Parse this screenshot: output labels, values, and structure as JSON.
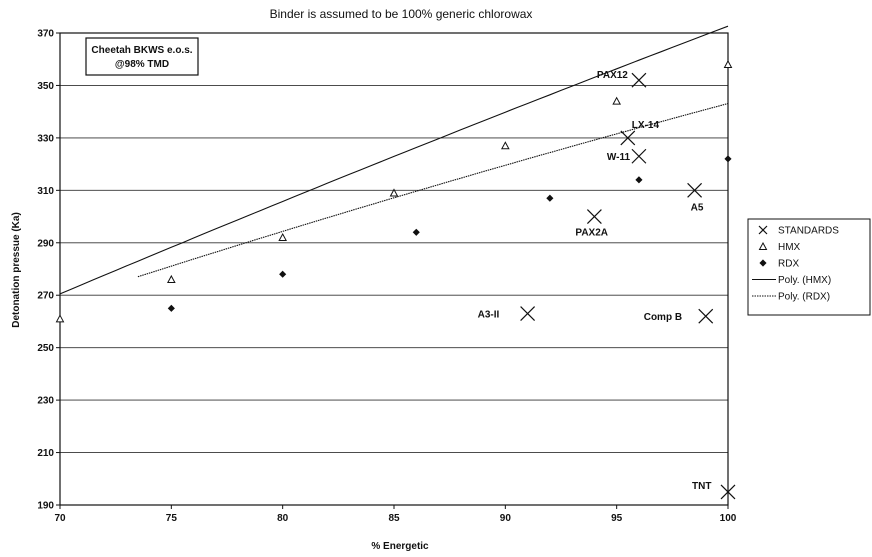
{
  "chart_data": {
    "type": "scatter",
    "title": "Binder is assumed to be 100% generic chlorowax",
    "xlabel": "% Energetic",
    "ylabel": "Detonation pressue (Ka)",
    "xlim": [
      70,
      100
    ],
    "ylim": [
      190,
      370
    ],
    "x_ticks": [
      "70",
      "75",
      "80",
      "85",
      "90",
      "95",
      "100"
    ],
    "y_ticks": [
      "190",
      "210",
      "230",
      "250",
      "270",
      "290",
      "310",
      "330",
      "350",
      "370"
    ],
    "grid": "horizontal",
    "legend_position": "right",
    "info_box": {
      "line1": "Cheetah BKWS e.o.s.",
      "line2": "@98% TMD"
    },
    "series": [
      {
        "name": "HMX",
        "marker": "triangle",
        "points": [
          {
            "x": 70,
            "y": 261
          },
          {
            "x": 75,
            "y": 276
          },
          {
            "x": 80,
            "y": 292
          },
          {
            "x": 85,
            "y": 309
          },
          {
            "x": 90,
            "y": 327
          },
          {
            "x": 95,
            "y": 344
          },
          {
            "x": 100,
            "y": 358
          }
        ]
      },
      {
        "name": "RDX",
        "marker": "diamond",
        "points": [
          {
            "x": 75,
            "y": 265
          },
          {
            "x": 80,
            "y": 278
          },
          {
            "x": 86,
            "y": 294
          },
          {
            "x": 92,
            "y": 307
          },
          {
            "x": 96,
            "y": 314
          },
          {
            "x": 100,
            "y": 322
          }
        ]
      },
      {
        "name": "STANDARDS",
        "marker": "cross",
        "points": [
          {
            "x": 96,
            "y": 352,
            "label": "PAX12"
          },
          {
            "x": 95.5,
            "y": 330,
            "label": "LX-14"
          },
          {
            "x": 96,
            "y": 323,
            "label": "W-11"
          },
          {
            "x": 98.5,
            "y": 310,
            "label": "A5"
          },
          {
            "x": 94,
            "y": 300,
            "label": "PAX2A"
          },
          {
            "x": 91,
            "y": 263,
            "label": "A3-II"
          },
          {
            "x": 99,
            "y": 262,
            "label": "Comp B"
          },
          {
            "x": 100,
            "y": 195,
            "label": "TNT"
          }
        ]
      }
    ],
    "trendlines": [
      {
        "name": "Poly. (HMX)",
        "style": "solid",
        "x_range": [
          70,
          100
        ],
        "coeffs": [
          -0.0061,
          4.44,
          -10.4
        ]
      },
      {
        "name": "Poly. (RDX)",
        "style": "dashed",
        "x_range": [
          73.5,
          100
        ],
        "coeffs": [
          -0.0084,
          3.95,
          32.1
        ]
      }
    ],
    "legend": [
      "STANDARDS",
      "HMX",
      "RDX",
      "Poly. (HMX)",
      "Poly. (RDX)"
    ]
  },
  "colors": {
    "ink": "#111111",
    "grid": "#333333",
    "background": "#ffffff"
  }
}
